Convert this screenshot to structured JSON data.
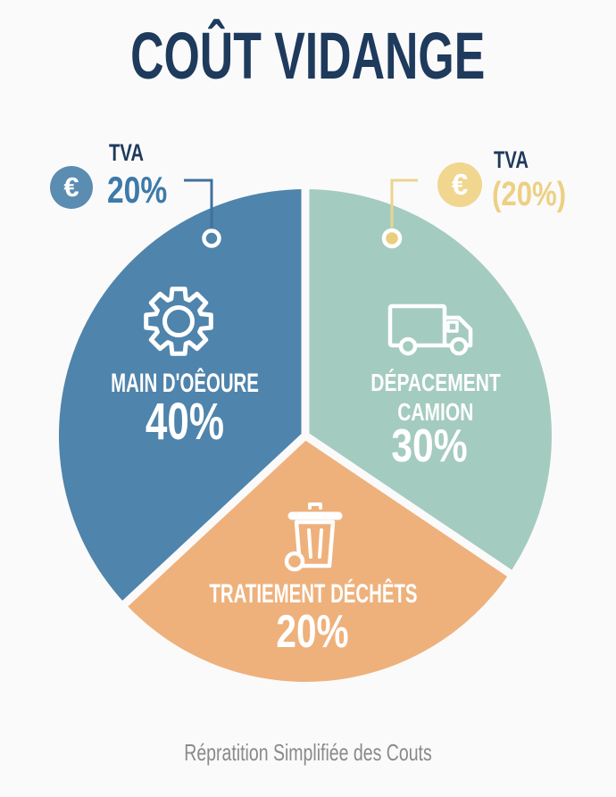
{
  "title": "COÛT VIDANGE",
  "caption": "Répratition Simplifiée des Couts",
  "euro_symbol": "€",
  "tva_left": {
    "icon": "euro-coin",
    "label": "TVA",
    "value": "20%"
  },
  "tva_right": {
    "icon": "euro-coin",
    "label": "TVA",
    "value": "(20%)"
  },
  "chart_data": {
    "type": "pie",
    "title": "COÛT VIDANGE",
    "caption": "Répratition Simplifiée des Couts",
    "legend_position": "none",
    "center": [
      342,
      488
    ],
    "radius": 276,
    "gap_angles_deg": [
      0,
      124,
      227
    ],
    "segments": [
      {
        "id": "deplacement-camion",
        "label": "DÉPACEMENT CAMION",
        "label_line1": "DÉPACEMENT",
        "label_line2": "CAMION",
        "value": 30,
        "value_label": "30%",
        "color": "#a4cbbf",
        "start_angle": 0,
        "end_angle": 124,
        "icon": "truck"
      },
      {
        "id": "traitement-dechets",
        "label": "TRATIEMENT DÉCHÊTS",
        "value": 20,
        "value_label": "20%",
        "color": "#eeb17c",
        "start_angle": 124,
        "end_angle": 227,
        "icon": "trash"
      },
      {
        "id": "main-doeuvre",
        "label": "MAIN D'OÊOURE",
        "value": 40,
        "value_label": "40%",
        "color": "#4f84ac",
        "start_angle": 227,
        "end_angle": 360,
        "icon": "gear"
      }
    ],
    "annotations": [
      {
        "target": "main-doeuvre",
        "text": "TVA 20%",
        "dot": [
          237,
          267
        ]
      },
      {
        "target": "deplacement-camion",
        "text": "TVA (20%)",
        "dot": [
          439,
          267
        ]
      }
    ]
  },
  "palette": {
    "bg": "#fbfafa",
    "navy": "#1e3a5c",
    "blue": "#4f84ac",
    "teal": "#a4cbbf",
    "orange": "#eeb17c",
    "blue_coin": "#5b8cb2",
    "yellow_coin": "#f0d68f",
    "blue_text": "#3d7aa9",
    "yellow_text": "#ecd083",
    "connector_blue": "#3f719f",
    "connector_yellow": "#ead492",
    "dot_yellow": "#e9ce7f",
    "caption_gray": "#8a8a8a",
    "icon_stroke": "#ffffff"
  }
}
